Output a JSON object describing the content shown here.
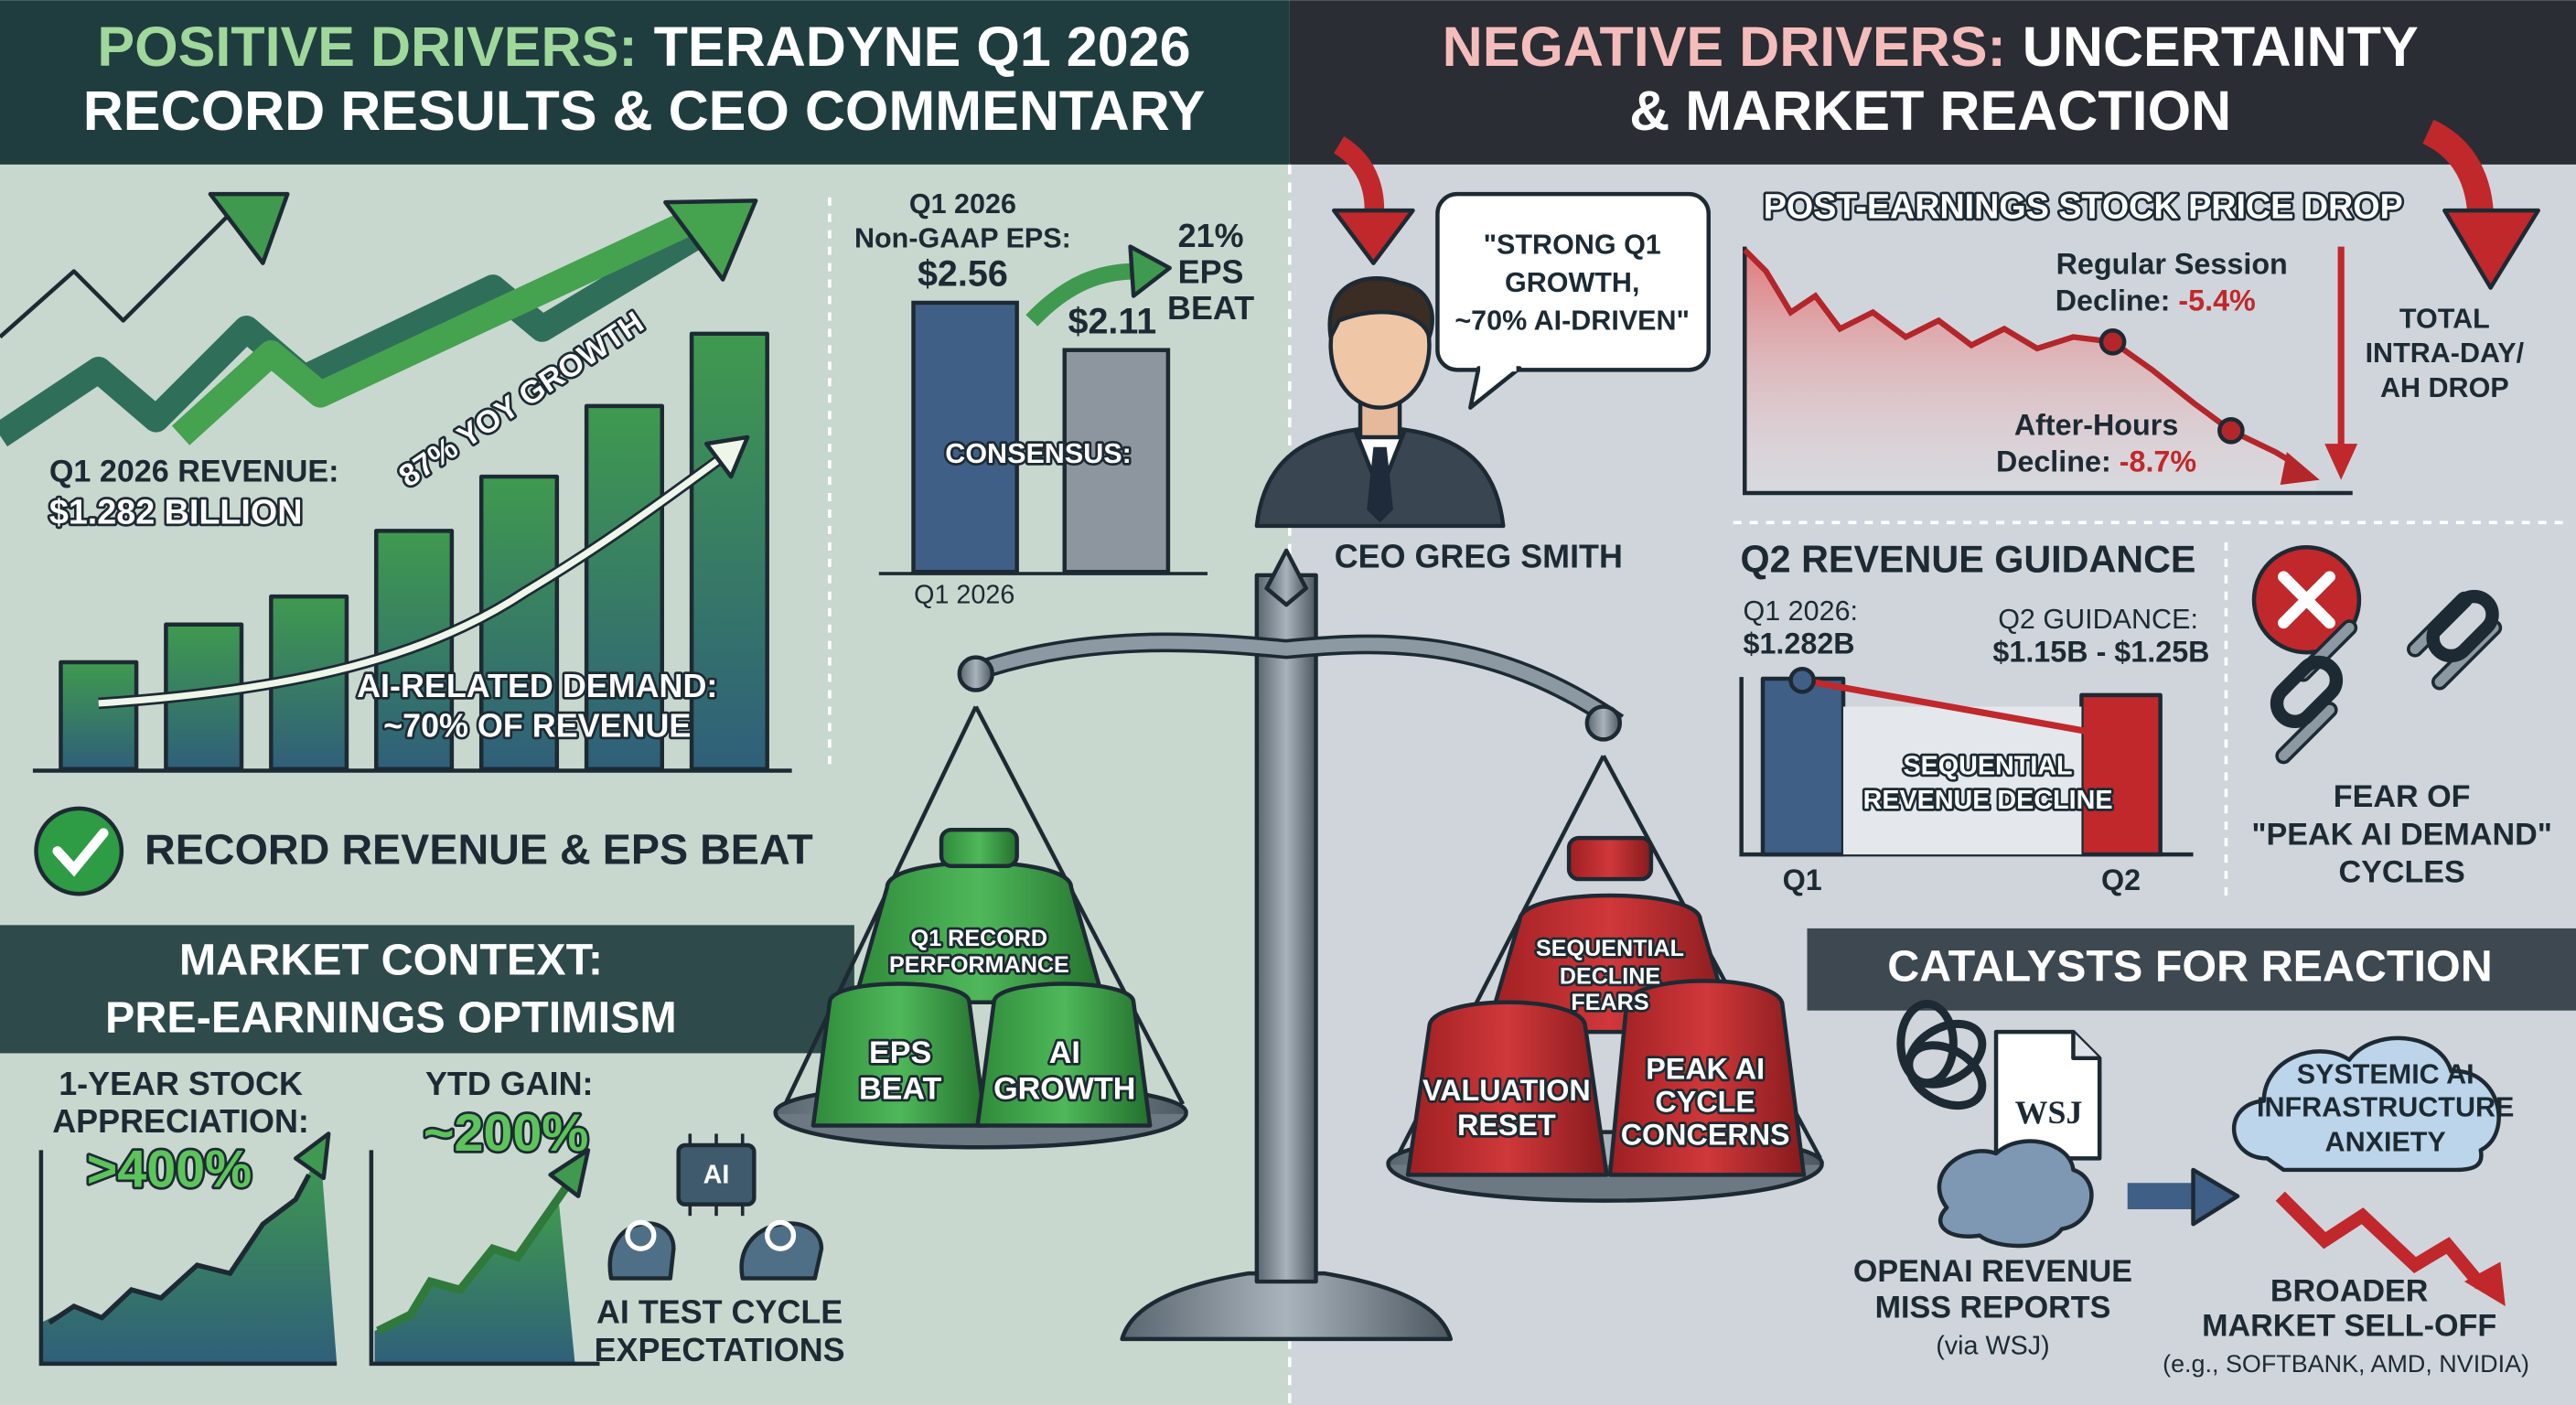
{
  "left_header": {
    "accent": "POSITIVE DRIVERS:",
    "line1": "TERADYNE Q1 2026",
    "line2": "RECORD RESULTS & CEO COMMENTARY"
  },
  "right_header": {
    "accent": "NEGATIVE DRIVERS:",
    "line1": "UNCERTAINTY",
    "line2": "& MARKET REACTION"
  },
  "revenue": {
    "label": "Q1 2026 REVENUE:",
    "value": "$1.282 BILLION",
    "growth": "87% YOY GROWTH",
    "ai_lines": [
      "AI-RELATED DEMAND:",
      "~70% OF REVENUE"
    ]
  },
  "eps": {
    "title_lines": [
      "Q1 2026",
      "Non-GAAP EPS:"
    ],
    "bars": [
      {
        "value": 2.56,
        "label": "$2.56"
      },
      {
        "value": 2.11,
        "label": "$2.11"
      }
    ],
    "beat_lines": [
      "21%",
      "EPS",
      "BEAT"
    ],
    "consensus": "CONSENSUS:",
    "x_label": "Q1 2026"
  },
  "check": "RECORD REVENUE & EPS BEAT",
  "market_context": {
    "title_lines": [
      "MARKET CONTEXT:",
      "PRE-EARNINGS OPTIMISM"
    ],
    "stock_lines": [
      "1-YEAR STOCK",
      "APPRECIATION:"
    ],
    "stock_value": ">400%",
    "ytd_label": "YTD GAIN:",
    "ytd_value": "~200%",
    "chip": "AI",
    "ai_lines": [
      "AI TEST CYCLE",
      "EXPECTATIONS"
    ]
  },
  "scale": {
    "positive": {
      "back": [
        "Q1 RECORD",
        "PERFORMANCE"
      ],
      "left": [
        "EPS",
        "BEAT"
      ],
      "right": [
        "AI",
        "GROWTH"
      ]
    },
    "negative": {
      "back": [
        "SEQUENTIAL",
        "DECLINE",
        "FEARS"
      ],
      "left": [
        "VALUATION",
        "RESET"
      ],
      "right": [
        "PEAK AI",
        "CYCLE",
        "CONCERNS"
      ]
    }
  },
  "ceo": {
    "quote_lines": [
      "\"STRONG Q1",
      "GROWTH,",
      "~70% AI-DRIVEN\""
    ],
    "name": "CEO GREG SMITH"
  },
  "stock_drop": {
    "title": "POST-EARNINGS STOCK PRICE DROP",
    "regular": {
      "label": "Regular Session",
      "prefix": "Decline:",
      "value": "-5.4%"
    },
    "after_hours": {
      "label": "After-Hours",
      "prefix": "Decline:",
      "value": "-8.7%"
    },
    "total_lines": [
      "TOTAL",
      "INTRA-DAY/",
      "AH DROP"
    ]
  },
  "guidance": {
    "title": "Q2 REVENUE GUIDANCE",
    "q1_label": "Q1 2026:",
    "q1_value": "$1.282B",
    "q2_label": "Q2 GUIDANCE:",
    "q2_value": "$1.15B - $1.25B",
    "decline_lines": [
      "SEQUENTIAL",
      "REVENUE DECLINE"
    ],
    "categories": [
      "Q1",
      "Q2"
    ],
    "fear_lines": [
      "FEAR OF",
      "\"PEAK AI DEMAND\"",
      "CYCLES"
    ]
  },
  "catalysts": {
    "title": "CATALYSTS FOR REACTION",
    "wsj": "WSJ",
    "openai_lines": [
      "OPENAI REVENUE",
      "MISS REPORTS"
    ],
    "source": "(via WSJ)",
    "anxiety_lines": [
      "SYSTEMIC AI",
      "INFRASTRUCTURE",
      "ANXIETY"
    ],
    "selloff_lines": [
      "BROADER",
      "MARKET SELL-OFF"
    ],
    "examples": "(e.g., SOFTBANK, AMD, NVIDIA)"
  }
}
